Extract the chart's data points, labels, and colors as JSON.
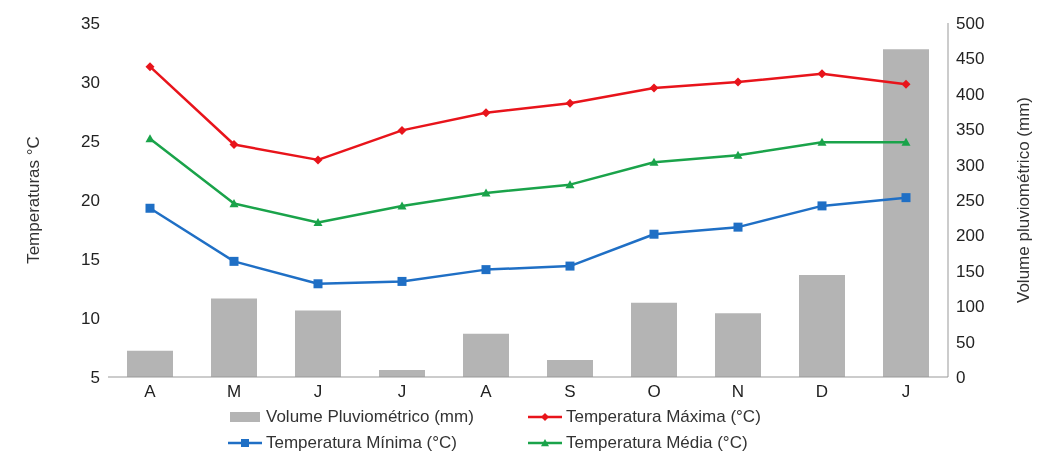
{
  "chart_data": {
    "type": "line",
    "ylabel": "Temperaturas °C",
    "y2label": "Volume pluviométrico (mm)",
    "categories": [
      "A",
      "M",
      "J",
      "J",
      "A",
      "S",
      "O",
      "N",
      "D",
      "J"
    ],
    "series": [
      {
        "name": "Volume Pluviométrico (mm)",
        "type": "bar",
        "axis": "y2",
        "color": "#b4b4b4",
        "values": [
          37,
          111,
          94,
          10,
          61,
          24,
          105,
          90,
          144,
          463
        ]
      },
      {
        "name": "Temperatura Máxima (°C)",
        "color": "#e8141b",
        "marker": "diamond",
        "values": [
          31.3,
          24.7,
          23.4,
          25.9,
          27.4,
          28.2,
          29.5,
          30.0,
          30.7,
          29.8
        ]
      },
      {
        "name": "Temperatura Mínima (°C)",
        "color": "#1f6fc5",
        "marker": "square",
        "values": [
          19.3,
          14.8,
          12.9,
          13.1,
          14.1,
          14.4,
          17.1,
          17.7,
          19.5,
          20.2
        ]
      },
      {
        "name": "Temperatura Média (°C)",
        "color": "#1aa34a",
        "marker": "triangle",
        "values": [
          25.2,
          19.7,
          18.1,
          19.5,
          20.6,
          21.3,
          23.2,
          23.8,
          24.9,
          24.9
        ]
      }
    ],
    "ylim": [
      5,
      35
    ],
    "yticks": [
      5,
      10,
      15,
      20,
      25,
      30,
      35
    ],
    "y2lim": [
      0,
      500
    ],
    "y2ticks": [
      0,
      50,
      100,
      150,
      200,
      250,
      300,
      350,
      400,
      450,
      500
    ],
    "legend": "bottom"
  }
}
